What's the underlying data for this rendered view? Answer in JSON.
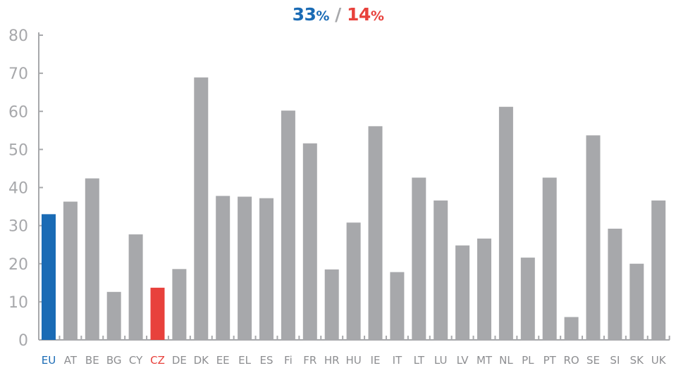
{
  "chart_data": {
    "type": "bar",
    "title": {
      "value_a": "33",
      "unit_a": "%",
      "separator": "/",
      "value_b": "14",
      "unit_b": "%"
    },
    "categories": [
      "EU",
      "AT",
      "BE",
      "BG",
      "CY",
      "CZ",
      "DE",
      "DK",
      "EE",
      "EL",
      "ES",
      "Fi",
      "FR",
      "HR",
      "HU",
      "IE",
      "IT",
      "LT",
      "LU",
      "LV",
      "MT",
      "NL",
      "PL",
      "PT",
      "RO",
      "SE",
      "SI",
      "SK",
      "UK"
    ],
    "values": [
      33,
      36.3,
      42.4,
      12.6,
      27.7,
      13.7,
      18.6,
      68.9,
      37.8,
      37.6,
      37.2,
      60.2,
      51.6,
      18.5,
      30.8,
      56.1,
      17.8,
      42.6,
      36.6,
      24.8,
      26.6,
      61.2,
      21.6,
      42.6,
      6,
      53.7,
      29.2,
      20,
      36.6
    ],
    "highlight": {
      "EU": "#1a6bb5",
      "CZ": "#e8413c"
    },
    "default_color": "#a7a8ab",
    "xlabel": "",
    "ylabel": "",
    "ylim": [
      0,
      80
    ],
    "yticks": [
      0,
      10,
      20,
      30,
      40,
      50,
      60,
      70,
      80
    ],
    "grid": false,
    "legend": "none"
  }
}
